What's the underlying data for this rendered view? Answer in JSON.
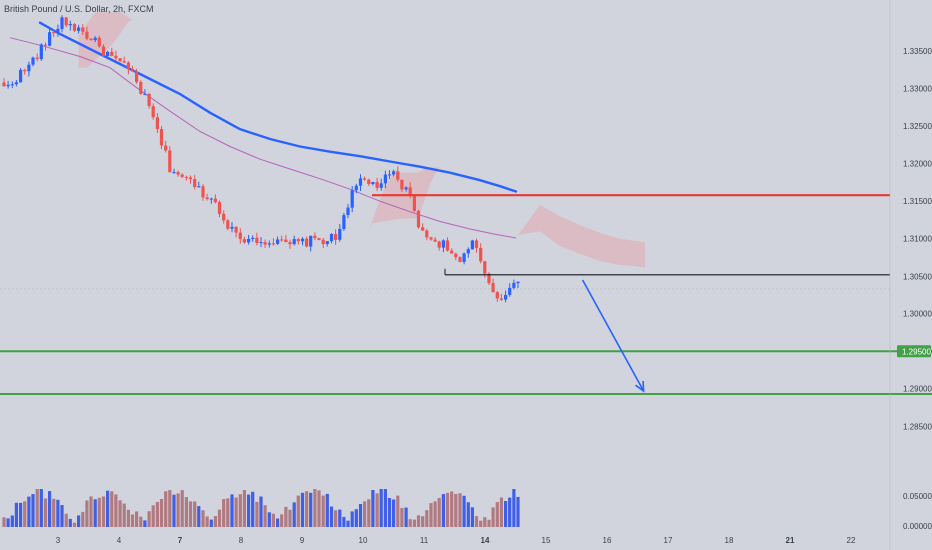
{
  "chart_data": {
    "type": "candlestick",
    "title": "British Pound / U.S. Dollar, 2h, FXCM",
    "x_ticks": [
      "3",
      "4",
      "7",
      "8",
      "9",
      "10",
      "11",
      "14",
      "15",
      "16",
      "17",
      "18",
      "21",
      "22"
    ],
    "y_ticks": [
      "1.33500",
      "1.33000",
      "1.32500",
      "1.32000",
      "1.31500",
      "1.31000",
      "1.30500",
      "1.30000",
      "1.29500",
      "1.29000",
      "1.28500"
    ],
    "y_range": [
      1.2825,
      1.3395
    ],
    "volume_ticks": [
      "0.05000",
      "0.00000"
    ],
    "levels": [
      {
        "name": "resistance",
        "price": 1.3158,
        "color": "#e53935"
      },
      {
        "name": "current",
        "price": 1.3052,
        "color": "#131722"
      },
      {
        "name": "support-1",
        "price": 1.295,
        "color": "#43a047",
        "label": "1.29500"
      },
      {
        "name": "support-2",
        "price": 1.2893,
        "color": "#43a047"
      }
    ],
    "colors": {
      "up": "#2962ff",
      "down": "#f0524f",
      "ma_fast": "#2962ff",
      "ma_slow": "#b04fb5",
      "cloud": "#e3a8b0",
      "vol_up": "#3f5fe6",
      "vol_down": "#b07a80"
    },
    "projection_arrow": {
      "from_x": 15.6,
      "from_price": 1.3045,
      "to_x": 16.6,
      "to_price": 1.2897,
      "color": "#2962ff"
    }
  }
}
